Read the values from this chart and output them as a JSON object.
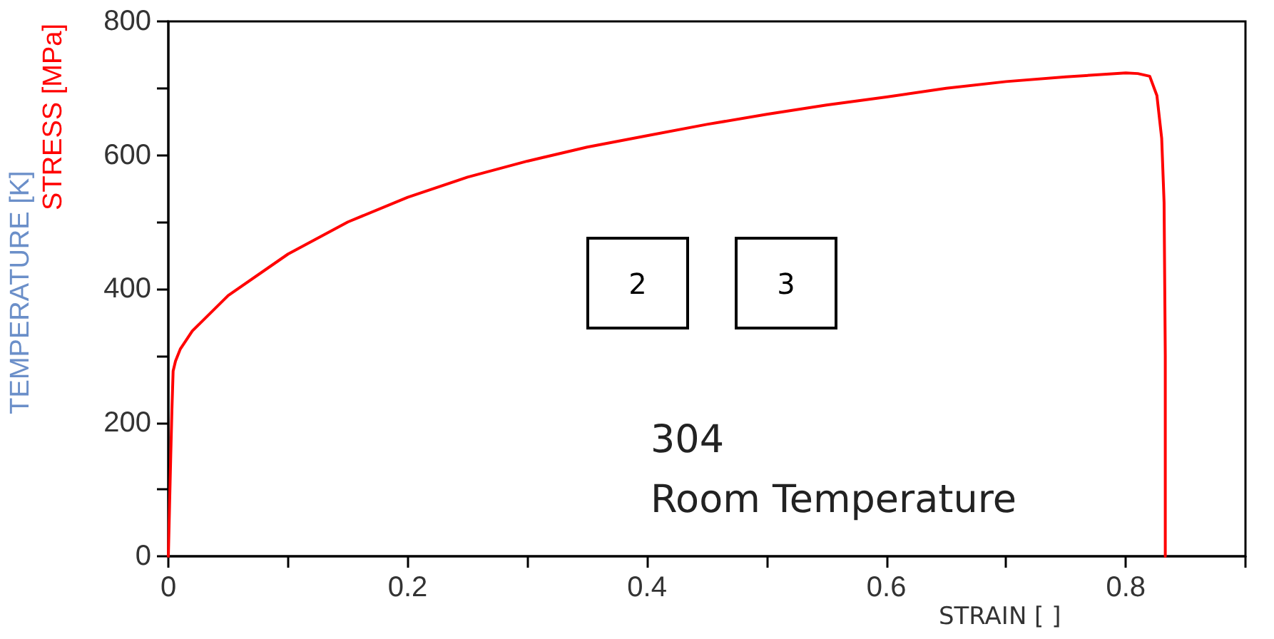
{
  "chart_data": {
    "type": "line",
    "xlabel": "STRAIN [ ]",
    "ylabel": "STRESS [MPa]",
    "annotations": [
      "2",
      "3",
      "304",
      "Room Temperature",
      "TEMPERATURE [K]"
    ],
    "x": [
      0,
      0.001,
      0.002,
      0.003,
      0.004,
      0.006,
      0.01,
      0.02,
      0.05,
      0.1,
      0.15,
      0.2,
      0.25,
      0.3,
      0.35,
      0.4,
      0.45,
      0.5,
      0.55,
      0.6,
      0.65,
      0.7,
      0.75,
      0.8,
      0.81,
      0.82,
      0.826,
      0.83,
      0.832,
      0.833,
      0.833
    ],
    "series": [
      {
        "color": "#ff0000",
        "values": [
          0,
          75,
          150,
          220,
          277,
          292,
          310,
          337,
          390,
          452,
          500,
          537,
          567,
          591,
          612,
          629,
          646,
          661,
          675,
          687,
          700,
          710,
          717,
          723,
          722,
          718,
          689,
          625,
          529,
          300,
          0
        ]
      }
    ],
    "xlim": [
      0,
      0.9
    ],
    "xticks": [
      0,
      {
        "value": 0.1,
        "label": null
      },
      0.2,
      {
        "value": 0.3,
        "label": null
      },
      0.4,
      {
        "value": 0.5,
        "label": null
      },
      0.6,
      {
        "value": 0.7,
        "label": null
      },
      0.8,
      {
        "value": 0.9,
        "label": null
      }
    ],
    "ylim": [
      0,
      800
    ],
    "yticks": [
      0,
      {
        "value": 100,
        "label": null
      },
      200,
      {
        "value": 300,
        "label": null
      },
      400,
      {
        "value": 500,
        "label": null
      },
      600,
      {
        "value": 700,
        "label": null
      },
      800
    ],
    "marker": "none",
    "line_style": "solid"
  }
}
